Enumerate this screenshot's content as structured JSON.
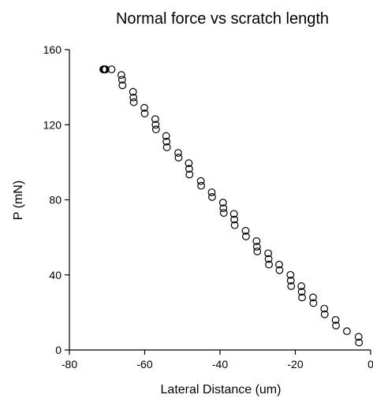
{
  "chart_data": {
    "type": "scatter",
    "title": "Normal force vs scratch length",
    "xlabel": "Lateral Distance (um)",
    "ylabel": "P (mN)",
    "xlim": [
      -80,
      0
    ],
    "ylim": [
      0,
      160
    ],
    "xticks": [
      -80,
      -60,
      -40,
      -20,
      0
    ],
    "yticks": [
      0,
      40,
      80,
      120,
      160
    ],
    "grid": false,
    "marker": "open-circle",
    "series": [
      {
        "x": [
          -71.0,
          -70.8,
          -70.6,
          -70.4,
          -68.8,
          -66.2,
          -66.0,
          -65.9,
          -63.1,
          -63.0,
          -62.9,
          -60.1,
          -60.0,
          -57.2,
          -57.1,
          -57.0,
          -54.3,
          -54.2,
          -54.1,
          -51.1,
          -51.0,
          -48.3,
          -48.2,
          -48.1,
          -45.1,
          -45.0,
          -42.2,
          -42.1,
          -39.2,
          -39.1,
          -39.0,
          -36.3,
          -36.2,
          -36.1,
          -33.2,
          -33.1,
          -30.3,
          -30.2,
          -30.1,
          -27.2,
          -27.1,
          -27.0,
          -24.3,
          -24.2,
          -21.3,
          -21.2,
          -21.1,
          -18.4,
          -18.3,
          -18.2,
          -15.3,
          -15.2,
          -12.3,
          -12.2,
          -9.3,
          -9.2,
          -6.3,
          -3.2,
          -3.1
        ],
        "y": [
          149.5,
          149.5,
          149.5,
          149.5,
          149.5,
          146.5,
          144.0,
          141.0,
          137.5,
          134.5,
          132.0,
          129.0,
          126.0,
          123.0,
          120.0,
          117.5,
          114.0,
          111.0,
          108.0,
          105.0,
          102.5,
          99.5,
          96.5,
          93.5,
          90.0,
          87.5,
          84.0,
          81.5,
          78.5,
          75.5,
          73.0,
          72.5,
          69.5,
          66.5,
          63.5,
          60.5,
          58.0,
          55.0,
          52.5,
          51.5,
          48.5,
          45.5,
          45.5,
          42.5,
          40.0,
          37.0,
          34.0,
          34.0,
          31.0,
          28.0,
          28.0,
          25.0,
          22.0,
          19.0,
          16.0,
          13.0,
          10.0,
          7.0,
          4.0
        ]
      }
    ]
  }
}
